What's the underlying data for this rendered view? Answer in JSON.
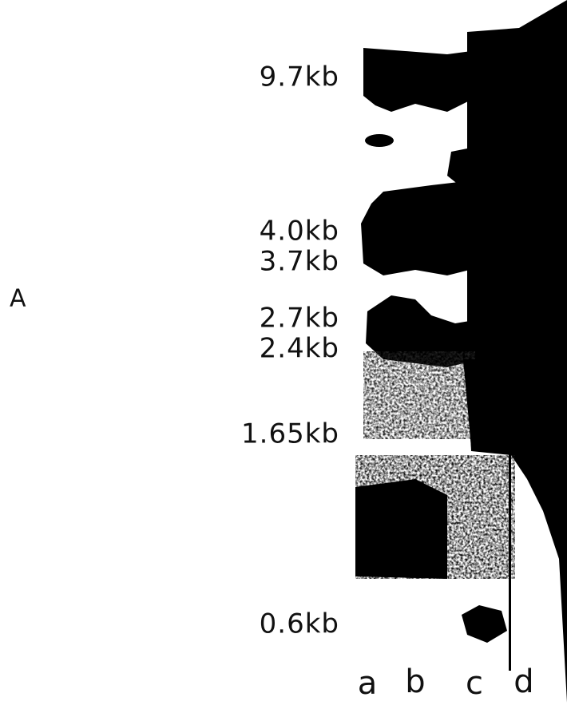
{
  "panel_label": "A",
  "size_markers": [
    "9.7kb",
    "4.0kb",
    "3.7kb",
    "2.7kb",
    "2.4kb",
    "1.65kb",
    "0.6kb"
  ],
  "lane_labels": [
    "a",
    "b",
    "c",
    "d"
  ]
}
